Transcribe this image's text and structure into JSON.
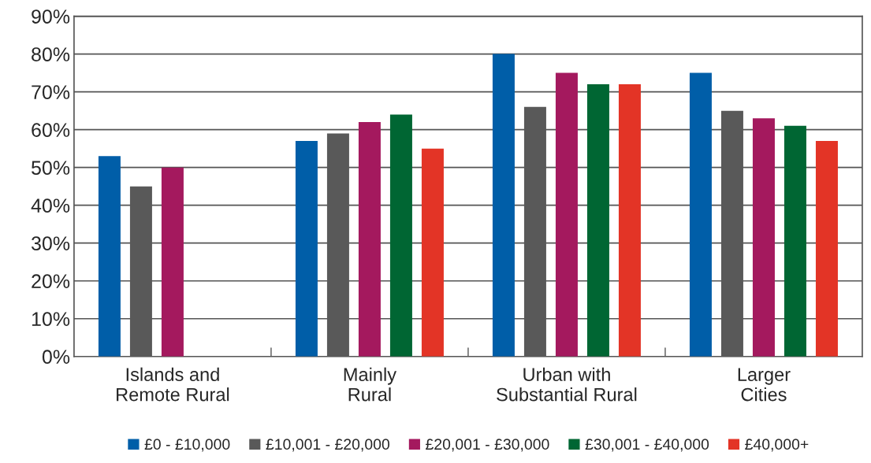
{
  "chart_data": {
    "type": "bar",
    "categories": [
      "Islands and\nRemote Rural",
      "Mainly\nRural",
      "Urban with\nSubstantial Rural",
      "Larger\nCities"
    ],
    "series": [
      {
        "name": "£0 - £10,000",
        "color": "#005ea8",
        "values": [
          53,
          57,
          80,
          75
        ]
      },
      {
        "name": "£10,001 - £20,000",
        "color": "#595959",
        "values": [
          45,
          59,
          66,
          65
        ]
      },
      {
        "name": "£20,001 - £30,000",
        "color": "#a4195e",
        "values": [
          50,
          62,
          75,
          63
        ]
      },
      {
        "name": "£30,001 - £40,000",
        "color": "#006633",
        "values": [
          null,
          64,
          72,
          61
        ]
      },
      {
        "name": "£40,000+",
        "color": "#e33426",
        "values": [
          null,
          55,
          72,
          57
        ]
      }
    ],
    "ylim": [
      0,
      90
    ],
    "yticks": [
      {
        "value": 0,
        "label": "0%"
      },
      {
        "value": 10,
        "label": "10%"
      },
      {
        "value": 20,
        "label": "20%"
      },
      {
        "value": 30,
        "label": "30%"
      },
      {
        "value": 40,
        "label": "40%"
      },
      {
        "value": 50,
        "label": "50%"
      },
      {
        "value": 60,
        "label": "60%"
      },
      {
        "value": 70,
        "label": "70%"
      },
      {
        "value": 80,
        "label": "80%"
      },
      {
        "value": 90,
        "label": "90%"
      }
    ],
    "grid": "y",
    "legend": "bottom"
  }
}
